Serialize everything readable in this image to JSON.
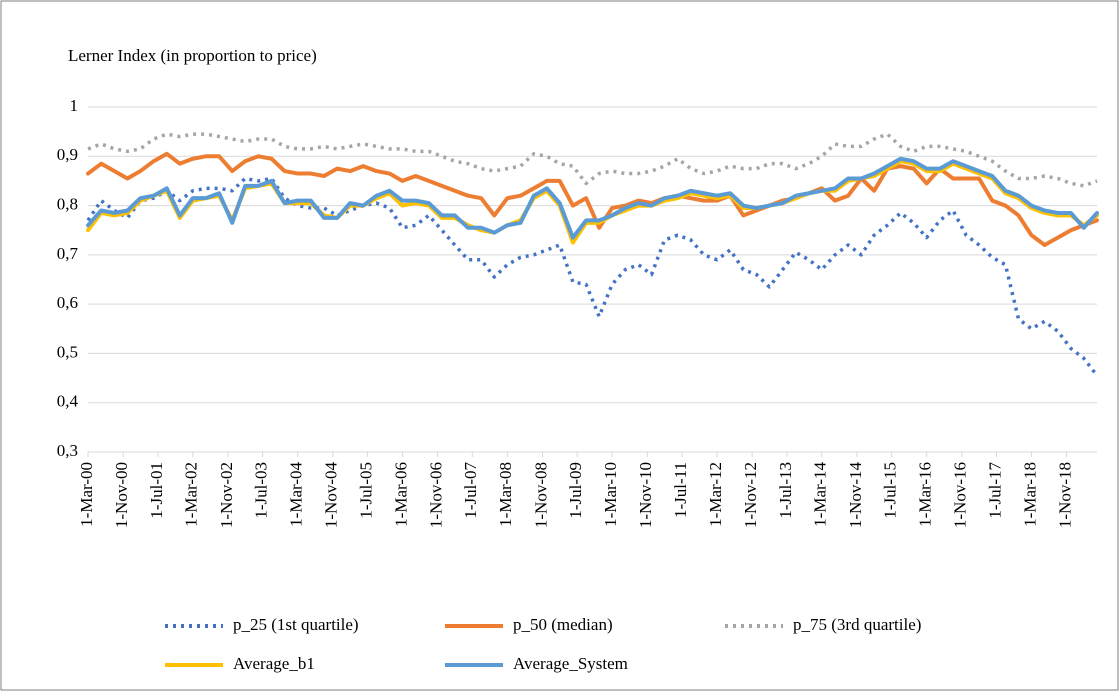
{
  "chart_data": {
    "type": "line",
    "title": "Lerner Index (in proportion to price)",
    "x": [
      "2000-03-01",
      "2000-06-01",
      "2000-09-01",
      "2000-12-01",
      "2001-03-01",
      "2001-06-01",
      "2001-09-01",
      "2001-12-01",
      "2002-03-01",
      "2002-06-01",
      "2002-09-01",
      "2002-12-01",
      "2003-03-01",
      "2003-06-01",
      "2003-09-01",
      "2003-12-01",
      "2004-03-01",
      "2004-06-01",
      "2004-09-01",
      "2004-12-01",
      "2005-03-01",
      "2005-06-01",
      "2005-09-01",
      "2005-12-01",
      "2006-03-01",
      "2006-06-01",
      "2006-09-01",
      "2006-12-01",
      "2007-03-01",
      "2007-06-01",
      "2007-09-01",
      "2007-12-01",
      "2008-03-01",
      "2008-06-01",
      "2008-09-01",
      "2008-12-01",
      "2009-03-01",
      "2009-06-01",
      "2009-09-01",
      "2009-12-01",
      "2010-03-01",
      "2010-06-01",
      "2010-09-01",
      "2010-12-01",
      "2011-03-01",
      "2011-06-01",
      "2011-09-01",
      "2011-12-01",
      "2012-03-01",
      "2012-06-01",
      "2012-09-01",
      "2012-12-01",
      "2013-03-01",
      "2013-06-01",
      "2013-09-01",
      "2013-12-01",
      "2014-03-01",
      "2014-06-01",
      "2014-09-01",
      "2014-12-01",
      "2015-03-01",
      "2015-06-01",
      "2015-09-01",
      "2015-12-01",
      "2016-03-01",
      "2016-06-01",
      "2016-09-01",
      "2016-12-01",
      "2017-03-01",
      "2017-06-01",
      "2017-09-01",
      "2017-12-01",
      "2018-03-01",
      "2018-06-01",
      "2018-09-01",
      "2018-12-01",
      "2019-03-01",
      "2019-06-01"
    ],
    "xlim": [
      "2000-03-01",
      "2019-06-01"
    ],
    "xticks": [
      {
        "value": "2000-03-01",
        "label": "1-Mar-00"
      },
      {
        "value": "2000-11-01",
        "label": "1-Nov-00"
      },
      {
        "value": "2001-07-01",
        "label": "1-Jul-01"
      },
      {
        "value": "2002-03-01",
        "label": "1-Mar-02"
      },
      {
        "value": "2002-11-01",
        "label": "1-Nov-02"
      },
      {
        "value": "2003-07-01",
        "label": "1-Jul-03"
      },
      {
        "value": "2004-03-01",
        "label": "1-Mar-04"
      },
      {
        "value": "2004-11-01",
        "label": "1-Nov-04"
      },
      {
        "value": "2005-07-01",
        "label": "1-Jul-05"
      },
      {
        "value": "2006-03-01",
        "label": "1-Mar-06"
      },
      {
        "value": "2006-11-01",
        "label": "1-Nov-06"
      },
      {
        "value": "2007-07-01",
        "label": "1-Jul-07"
      },
      {
        "value": "2008-03-01",
        "label": "1-Mar-08"
      },
      {
        "value": "2008-11-01",
        "label": "1-Nov-08"
      },
      {
        "value": "2009-07-01",
        "label": "1-Jul-09"
      },
      {
        "value": "2010-03-01",
        "label": "1-Mar-10"
      },
      {
        "value": "2010-11-01",
        "label": "1-Nov-10"
      },
      {
        "value": "2011-07-01",
        "label": "1-Jul-11"
      },
      {
        "value": "2012-03-01",
        "label": "1-Mar-12"
      },
      {
        "value": "2012-11-01",
        "label": "1-Nov-12"
      },
      {
        "value": "2013-07-01",
        "label": "1-Jul-13"
      },
      {
        "value": "2014-03-01",
        "label": "1-Mar-14"
      },
      {
        "value": "2014-11-01",
        "label": "1-Nov-14"
      },
      {
        "value": "2015-07-01",
        "label": "1-Jul-15"
      },
      {
        "value": "2016-03-01",
        "label": "1-Mar-16"
      },
      {
        "value": "2016-11-01",
        "label": "1-Nov-16"
      },
      {
        "value": "2017-07-01",
        "label": "1-Jul-17"
      },
      {
        "value": "2018-03-01",
        "label": "1-Mar-18"
      },
      {
        "value": "2018-11-01",
        "label": "1-Nov-18"
      }
    ],
    "ylim": [
      0.3,
      1
    ],
    "yticks": [
      {
        "value": 0.3,
        "label": "0,3"
      },
      {
        "value": 0.4,
        "label": "0,4"
      },
      {
        "value": 0.5,
        "label": "0,5"
      },
      {
        "value": 0.6,
        "label": "0,6"
      },
      {
        "value": 0.7,
        "label": "0,7"
      },
      {
        "value": 0.8,
        "label": "0,8"
      },
      {
        "value": 0.9,
        "label": "0,9"
      },
      1
    ],
    "grid": true,
    "legend": "bottom",
    "series": [
      {
        "name": "p_25 (1st quartile)",
        "color": "#4472c4",
        "line_style": "dotted",
        "values": [
          0.77,
          0.81,
          0.79,
          0.775,
          0.81,
          0.815,
          0.83,
          0.81,
          0.83,
          0.835,
          0.835,
          0.83,
          0.855,
          0.85,
          0.855,
          0.815,
          0.8,
          0.795,
          0.795,
          0.78,
          0.79,
          0.8,
          0.805,
          0.795,
          0.755,
          0.76,
          0.78,
          0.75,
          0.72,
          0.69,
          0.69,
          0.655,
          0.68,
          0.695,
          0.7,
          0.71,
          0.72,
          0.645,
          0.64,
          0.575,
          0.64,
          0.67,
          0.68,
          0.66,
          0.73,
          0.74,
          0.73,
          0.7,
          0.69,
          0.71,
          0.67,
          0.66,
          0.635,
          0.67,
          0.705,
          0.69,
          0.67,
          0.7,
          0.72,
          0.7,
          0.74,
          0.76,
          0.785,
          0.765,
          0.735,
          0.77,
          0.79,
          0.74,
          0.72,
          0.695,
          0.68,
          0.57,
          0.55,
          0.565,
          0.545,
          0.51,
          0.49,
          0.455
        ]
      },
      {
        "name": "p_50 (median)",
        "color": "#ed7d31",
        "line_style": "solid",
        "values": [
          0.865,
          0.885,
          0.87,
          0.855,
          0.87,
          0.89,
          0.905,
          0.885,
          0.895,
          0.9,
          0.9,
          0.87,
          0.89,
          0.9,
          0.895,
          0.87,
          0.865,
          0.865,
          0.86,
          0.875,
          0.87,
          0.88,
          0.87,
          0.865,
          0.85,
          0.86,
          0.85,
          0.84,
          0.83,
          0.82,
          0.815,
          0.78,
          0.815,
          0.82,
          0.835,
          0.85,
          0.85,
          0.8,
          0.815,
          0.755,
          0.795,
          0.8,
          0.81,
          0.805,
          0.815,
          0.82,
          0.815,
          0.81,
          0.81,
          0.82,
          0.78,
          0.79,
          0.8,
          0.81,
          0.815,
          0.825,
          0.835,
          0.81,
          0.82,
          0.855,
          0.83,
          0.875,
          0.88,
          0.875,
          0.845,
          0.875,
          0.855,
          0.855,
          0.855,
          0.81,
          0.8,
          0.78,
          0.74,
          0.72,
          0.735,
          0.75,
          0.76,
          0.77
        ]
      },
      {
        "name": "p_75 (3rd quartile)",
        "color": "#a5a5a5",
        "line_style": "dotted",
        "values": [
          0.915,
          0.925,
          0.915,
          0.91,
          0.915,
          0.935,
          0.945,
          0.94,
          0.945,
          0.945,
          0.94,
          0.935,
          0.93,
          0.935,
          0.935,
          0.92,
          0.915,
          0.915,
          0.92,
          0.915,
          0.92,
          0.925,
          0.92,
          0.915,
          0.915,
          0.91,
          0.91,
          0.9,
          0.89,
          0.885,
          0.875,
          0.87,
          0.875,
          0.88,
          0.905,
          0.9,
          0.885,
          0.88,
          0.845,
          0.865,
          0.87,
          0.865,
          0.865,
          0.87,
          0.88,
          0.895,
          0.875,
          0.865,
          0.87,
          0.88,
          0.875,
          0.875,
          0.885,
          0.885,
          0.875,
          0.885,
          0.9,
          0.925,
          0.92,
          0.92,
          0.935,
          0.945,
          0.92,
          0.91,
          0.92,
          0.92,
          0.915,
          0.91,
          0.9,
          0.89,
          0.87,
          0.855,
          0.855,
          0.86,
          0.855,
          0.845,
          0.84,
          0.85
        ]
      },
      {
        "name": "Average_b1",
        "color": "#ffc000",
        "line_style": "solid",
        "values": [
          0.75,
          0.785,
          0.78,
          0.785,
          0.81,
          0.82,
          0.83,
          0.775,
          0.81,
          0.815,
          0.82,
          0.77,
          0.835,
          0.84,
          0.845,
          0.805,
          0.805,
          0.805,
          0.78,
          0.775,
          0.8,
          0.8,
          0.815,
          0.825,
          0.8,
          0.805,
          0.8,
          0.775,
          0.775,
          0.76,
          0.75,
          0.745,
          0.76,
          0.77,
          0.815,
          0.83,
          0.8,
          0.725,
          0.765,
          0.765,
          0.78,
          0.79,
          0.8,
          0.8,
          0.81,
          0.815,
          0.825,
          0.82,
          0.815,
          0.82,
          0.795,
          0.795,
          0.8,
          0.805,
          0.815,
          0.825,
          0.83,
          0.83,
          0.85,
          0.855,
          0.86,
          0.875,
          0.89,
          0.885,
          0.87,
          0.87,
          0.885,
          0.875,
          0.865,
          0.855,
          0.825,
          0.815,
          0.795,
          0.785,
          0.78,
          0.78,
          0.76,
          0.78
        ]
      },
      {
        "name": "Average_System",
        "color": "#5b9bd5",
        "line_style": "solid",
        "values": [
          0.76,
          0.79,
          0.785,
          0.79,
          0.815,
          0.82,
          0.835,
          0.78,
          0.815,
          0.815,
          0.825,
          0.765,
          0.84,
          0.84,
          0.85,
          0.805,
          0.81,
          0.81,
          0.775,
          0.775,
          0.805,
          0.8,
          0.82,
          0.83,
          0.81,
          0.81,
          0.805,
          0.78,
          0.78,
          0.755,
          0.755,
          0.745,
          0.76,
          0.765,
          0.82,
          0.835,
          0.805,
          0.735,
          0.77,
          0.77,
          0.78,
          0.795,
          0.805,
          0.8,
          0.815,
          0.82,
          0.83,
          0.825,
          0.82,
          0.825,
          0.8,
          0.795,
          0.8,
          0.805,
          0.82,
          0.825,
          0.83,
          0.835,
          0.855,
          0.855,
          0.865,
          0.88,
          0.895,
          0.89,
          0.875,
          0.875,
          0.89,
          0.88,
          0.87,
          0.86,
          0.83,
          0.82,
          0.8,
          0.79,
          0.785,
          0.785,
          0.755,
          0.785
        ]
      }
    ]
  }
}
